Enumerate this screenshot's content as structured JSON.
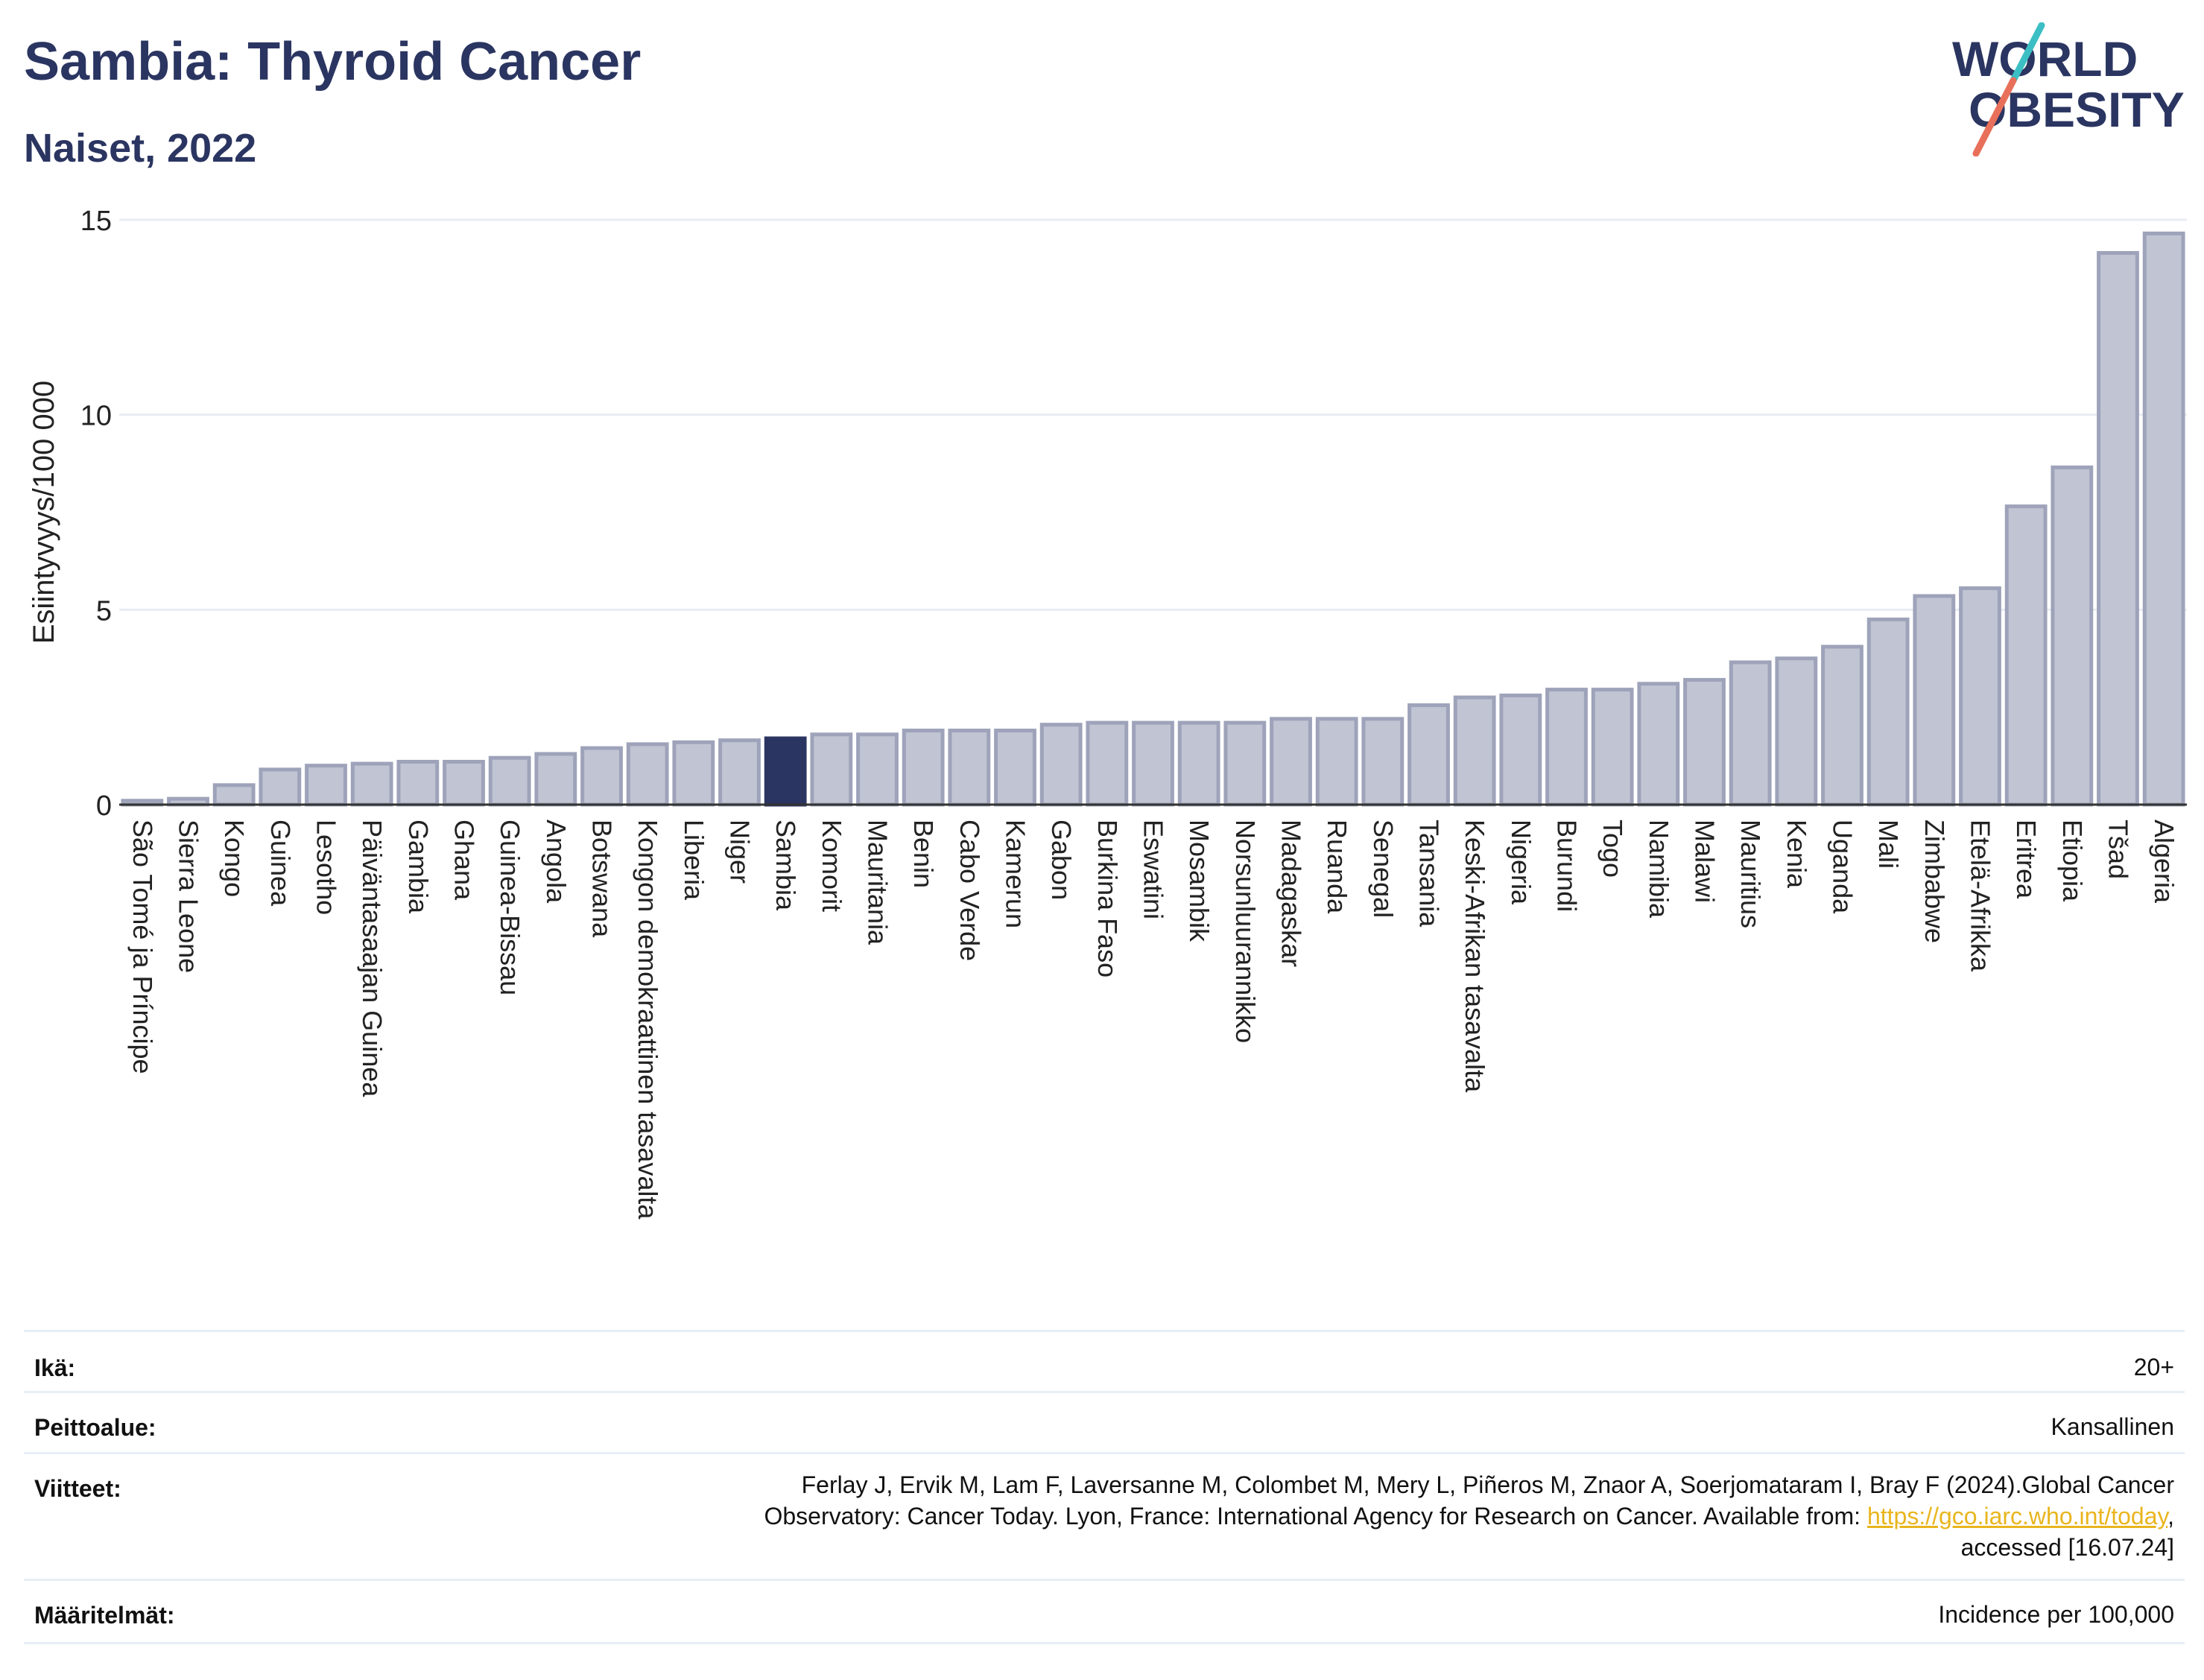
{
  "header": {
    "title": "Sambia: Thyroid Cancer",
    "subtitle": "Naiset, 2022"
  },
  "logo": {
    "line1": "WORLD",
    "line2": "OBESITY",
    "colors": {
      "text": "#2b3561",
      "slash_teal": "#3cbfc4",
      "slash_coral": "#e8705a"
    }
  },
  "chart_data": {
    "type": "bar",
    "ylabel": "Esiintyvyys/100 000",
    "xlabel": "",
    "ylim": [
      0,
      15
    ],
    "yticks": [
      0,
      5,
      10,
      15
    ],
    "grid": true,
    "highlight": "Sambia",
    "colors": {
      "bar": "#c0c4d3",
      "bar_edge": "#9ea3ba",
      "highlight": "#2b3561",
      "grid": "#e8edf3",
      "axis": "#333333"
    },
    "categories": [
      "São Tomé ja Príncipe",
      "Sierra Leone",
      "Kongo",
      "Guinea",
      "Lesotho",
      "Päiväntasaajan Guinea",
      "Gambia",
      "Ghana",
      "Guinea-Bissau",
      "Angola",
      "Botswana",
      "Kongon demokraattinen tasavalta",
      "Liberia",
      "Niger",
      "Sambia",
      "Komorit",
      "Mauritania",
      "Benin",
      "Cabo Verde",
      "Kamerun",
      "Gabon",
      "Burkina Faso",
      "Eswatini",
      "Mosambik",
      "Norsunluurannikko",
      "Madagaskar",
      "Ruanda",
      "Senegal",
      "Tansania",
      "Keski-Afrikan tasavalta",
      "Nigeria",
      "Burundi",
      "Togo",
      "Namibia",
      "Malawi",
      "Mauritius",
      "Kenia",
      "Uganda",
      "Mali",
      "Zimbabwe",
      "Etelä-Afrikka",
      "Eritrea",
      "Etiopia",
      "Tšad",
      "Algeria"
    ],
    "values": [
      0.1,
      0.15,
      0.5,
      0.9,
      1.0,
      1.05,
      1.1,
      1.1,
      1.2,
      1.3,
      1.45,
      1.55,
      1.6,
      1.65,
      1.7,
      1.8,
      1.8,
      1.9,
      1.9,
      1.9,
      2.05,
      2.1,
      2.1,
      2.1,
      2.1,
      2.2,
      2.2,
      2.2,
      2.55,
      2.75,
      2.8,
      2.95,
      2.95,
      3.1,
      3.2,
      3.65,
      3.75,
      4.05,
      4.75,
      5.35,
      5.55,
      7.65,
      8.65,
      14.15,
      14.65
    ]
  },
  "info": {
    "age": {
      "label": "Ikä:",
      "value": "20+"
    },
    "coverage": {
      "label": "Peittoalue:",
      "value": "Kansallinen"
    },
    "references": {
      "label": "Viitteet:",
      "line1": "Ferlay J, Ervik M, Lam F, Laversanne M, Colombet M, Mery L, Piñeros M, Znaor A, Soerjomataram I, Bray F (2024).Global Cancer",
      "line2_prefix": "Observatory: Cancer Today. Lyon, France: International Agency for Research on Cancer. Available from: ",
      "link": "https://gco.iarc.who.int/today",
      "line2_suffix": ",",
      "line3": "accessed [16.07.24]"
    },
    "definitions": {
      "label": "Määritelmät:",
      "value": "Incidence per 100,000"
    }
  }
}
